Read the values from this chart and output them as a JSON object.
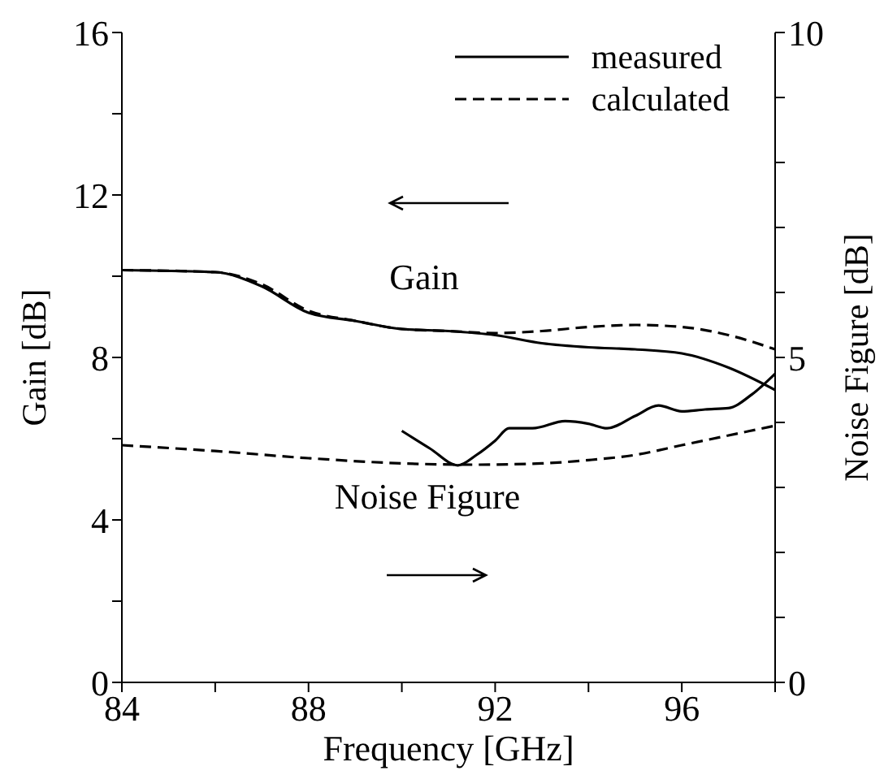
{
  "chart_data": {
    "type": "line",
    "xlabel": "Frequency [GHz]",
    "ylabel": "Gain [dB]",
    "y2label": "Noise Figure [dB]",
    "xlim": [
      84,
      98
    ],
    "xticks": [
      84,
      {
        "value": 86,
        "label": null
      },
      88,
      {
        "value": 90,
        "label": null
      },
      92,
      {
        "value": 94,
        "label": null
      },
      96,
      {
        "value": 98,
        "label": null
      }
    ],
    "ylim": [
      0,
      16
    ],
    "yticks": [
      0,
      {
        "value": 2,
        "label": null
      },
      4,
      {
        "value": 6,
        "label": null
      },
      8,
      {
        "value": 10,
        "label": null
      },
      12,
      {
        "value": 14,
        "label": null
      },
      16
    ],
    "y2lim": [
      0,
      10
    ],
    "y2ticks": [
      0,
      {
        "value": 1,
        "label": null
      },
      {
        "value": 2,
        "label": null
      },
      {
        "value": 3,
        "label": null
      },
      {
        "value": 4,
        "label": null
      },
      5,
      {
        "value": 6,
        "label": null
      },
      {
        "value": 7,
        "label": null
      },
      {
        "value": 8,
        "label": null
      },
      {
        "value": 9,
        "label": null
      },
      10
    ],
    "legend": "top right",
    "marker": "none",
    "annotations": [
      "Gain",
      "Noise Figure"
    ],
    "series": [
      {
        "name": "measured",
        "color": "#000000",
        "line_style": "solid",
        "x": [
          84,
          86,
          87,
          88,
          89,
          90,
          91,
          92,
          93,
          94,
          95,
          96,
          97,
          98
        ],
        "values": [
          10.15,
          10.1,
          9.75,
          9.1,
          8.9,
          8.7,
          8.65,
          8.55,
          8.35,
          8.25,
          8.2,
          8.1,
          7.75,
          7.2
        ]
      },
      {
        "name": "calculated",
        "color": "#000000",
        "line_style": "dashed",
        "x": [
          84,
          86,
          87,
          88,
          89,
          90,
          91,
          92,
          93,
          94,
          95,
          96,
          97,
          98
        ],
        "values": [
          10.15,
          10.1,
          9.8,
          9.15,
          8.9,
          8.7,
          8.65,
          8.6,
          8.65,
          8.75,
          8.8,
          8.75,
          8.55,
          8.2
        ]
      },
      {
        "color": "#000000",
        "line_style": "solid",
        "axis": "y2",
        "x": [
          90,
          90.6,
          91.2,
          91.6,
          92,
          92.3,
          92.8,
          93.5,
          94,
          94.4,
          95,
          95.5,
          96,
          96.5,
          97,
          97.5,
          98
        ],
        "values": [
          3.87,
          3.6,
          3.34,
          3.5,
          3.72,
          3.91,
          3.91,
          4.02,
          3.98,
          3.91,
          4.1,
          4.26,
          4.17,
          4.2,
          4.22,
          4.43,
          4.75
        ]
      },
      {
        "color": "#000000",
        "line_style": "dashed",
        "axis": "y2",
        "x": [
          84,
          86,
          88,
          90,
          91.5,
          93,
          94,
          95,
          96,
          97,
          98
        ],
        "values": [
          3.65,
          3.56,
          3.45,
          3.37,
          3.35,
          3.37,
          3.42,
          3.5,
          3.65,
          3.8,
          3.95
        ]
      }
    ]
  }
}
